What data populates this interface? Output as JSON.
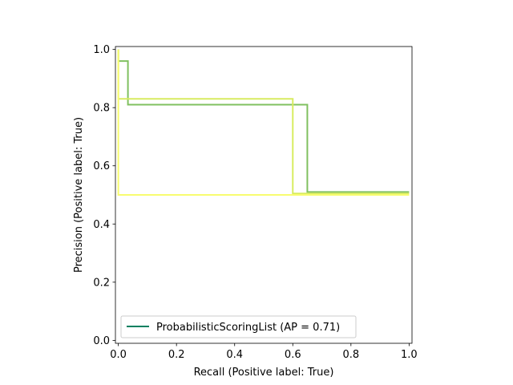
{
  "chart_data": {
    "type": "line",
    "title": "",
    "xlabel": "Recall (Positive label: True)",
    "ylabel": "Precision (Positive label: True)",
    "xlim": [
      -0.01,
      1.01
    ],
    "ylim": [
      -0.01,
      1.01
    ],
    "xticks": [
      0.0,
      0.2,
      0.4,
      0.6,
      0.8,
      1.0
    ],
    "yticks": [
      0.0,
      0.2,
      0.4,
      0.6,
      0.8,
      1.0
    ],
    "xtick_labels": [
      "0.0",
      "0.2",
      "0.4",
      "0.6",
      "0.8",
      "1.0"
    ],
    "ytick_labels": [
      "0.0",
      "0.2",
      "0.4",
      "0.6",
      "0.8",
      "1.0"
    ],
    "grid": false,
    "legend": {
      "placement": "lower-left",
      "entries": [
        {
          "label": "ProbabilisticScoringList (AP = 0.71)",
          "color": "#008060"
        }
      ]
    },
    "series": [
      {
        "color": "#80c060",
        "step": "post",
        "x": [
          0.0,
          0.0,
          0.033,
          0.033,
          0.65,
          0.65,
          1.0
        ],
        "y": [
          1.0,
          0.96,
          0.96,
          0.81,
          0.81,
          0.51,
          0.51
        ]
      },
      {
        "color": "#d8ec60",
        "step": "post",
        "x": [
          0.0,
          0.0,
          0.6,
          0.6,
          1.0
        ],
        "y": [
          1.0,
          0.83,
          0.83,
          0.505,
          0.505
        ]
      },
      {
        "color": "#f8fc70",
        "step": "post",
        "x": [
          0.0,
          0.0,
          0.6,
          0.6,
          1.0
        ],
        "y": [
          1.0,
          0.5,
          0.5,
          0.5,
          0.5
        ]
      }
    ]
  }
}
